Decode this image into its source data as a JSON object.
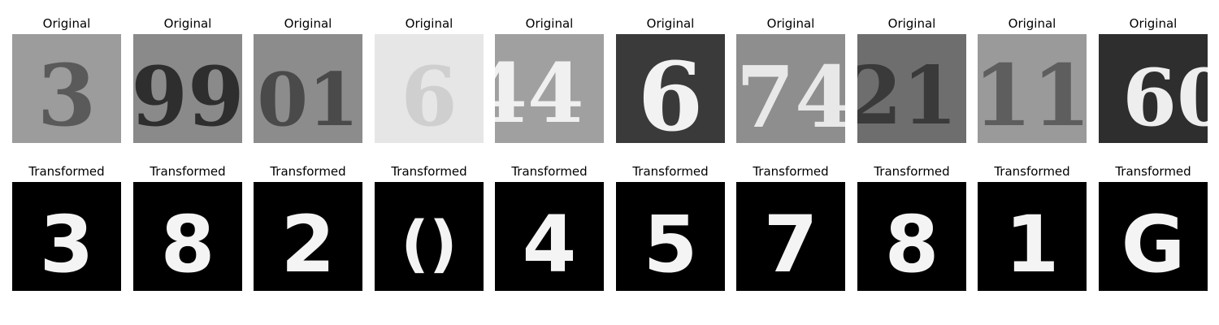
{
  "original_title": "Original",
  "transformed_title": "Transformed",
  "panels": [
    {
      "original_glyph": "3",
      "original_bg": "#9c9c9c",
      "original_fg": "#5a5a5a",
      "transformed_glyph": "3"
    },
    {
      "original_glyph": "99",
      "original_bg": "#8a8a8a",
      "original_fg": "#2e2e2e",
      "transformed_glyph": "8"
    },
    {
      "original_glyph": "01",
      "original_bg": "#8c8c8c",
      "original_fg": "#4a4a4a",
      "transformed_glyph": "2"
    },
    {
      "original_glyph": "6",
      "original_bg": "#e6e6e6",
      "original_fg": "#cfcfcf",
      "transformed_glyph": "()"
    },
    {
      "original_glyph": "44",
      "original_bg": "#a0a0a0",
      "original_fg": "#f0f0f0",
      "transformed_glyph": "4"
    },
    {
      "original_glyph": "6",
      "original_bg": "#3a3a3a",
      "original_fg": "#f2f2f2",
      "transformed_glyph": "5"
    },
    {
      "original_glyph": "74",
      "original_bg": "#8e8e8e",
      "original_fg": "#e8e8e8",
      "transformed_glyph": "7"
    },
    {
      "original_glyph": "21",
      "original_bg": "#6e6e6e",
      "original_fg": "#3a3a3a",
      "transformed_glyph": "8"
    },
    {
      "original_glyph": "11",
      "original_bg": "#9a9a9a",
      "original_fg": "#5e5e5e",
      "transformed_glyph": "1"
    },
    {
      "original_glyph": "60",
      "original_bg": "#2e2e2e",
      "original_fg": "#eeeeee",
      "transformed_glyph": "G"
    }
  ]
}
